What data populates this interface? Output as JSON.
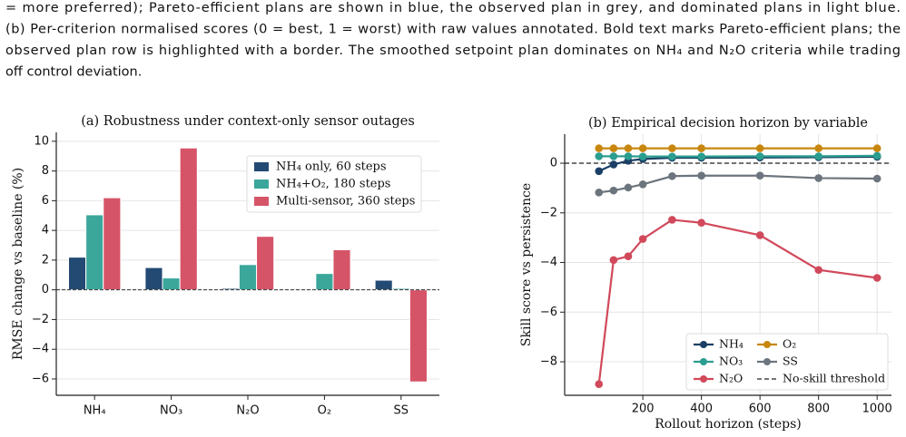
{
  "caption": [
    "= more preferred); Pareto-efficient plans are shown in blue, the observed plan in grey, and dominated plans in light blue.",
    "(b) Per-criterion normalised scores (0 = best, 1 = worst) with raw values annotated. Bold text marks Pareto-efficient plans; the",
    "observed plan row is highlighted with a border. The smoothed setpoint plan dominates on NH₄ and N₂O criteria while trading",
    "off control deviation."
  ],
  "chart_data": [
    {
      "type": "bar",
      "title": "(a) Robustness under context-only sensor outages",
      "ylabel": "RMSE change vs baseline (%)",
      "categories": [
        "NH₄",
        "NO₃",
        "N₂O",
        "O₂",
        "SS"
      ],
      "series": [
        {
          "name": "NH₄ only,  60 steps",
          "color": "#234a73",
          "values": [
            2.2,
            1.5,
            0.1,
            0,
            0.65
          ]
        },
        {
          "name": "NH₄+O₂,  180 steps",
          "color": "#3aa79a",
          "values": [
            5.05,
            0.8,
            1.7,
            1.1,
            0.1
          ]
        },
        {
          "name": "Multi-sensor,  360 steps",
          "color": "#d65468",
          "values": [
            6.2,
            9.55,
            3.6,
            2.7,
            -6.2
          ]
        }
      ],
      "ylim": [
        -7.1,
        10.6
      ],
      "yticks": [
        {
          "value": -6,
          "label": "−6"
        },
        {
          "value": -4,
          "label": "−4"
        },
        {
          "value": -2,
          "label": "−2"
        },
        0,
        2,
        4,
        6,
        8,
        10
      ],
      "grid": true,
      "legend": "upper right"
    },
    {
      "type": "line",
      "title": "(b) Empirical decision horizon by variable",
      "xlabel": "Rollout horizon (steps)",
      "ylabel": "Skill score vs persistence",
      "x": [
        50,
        100,
        150,
        200,
        300,
        400,
        600,
        800,
        1000
      ],
      "series": [
        {
          "name": "NH₄",
          "color": "#1b3f66",
          "values": [
            -0.32,
            -0.05,
            0.1,
            0.17,
            0.22,
            0.22,
            0.23,
            0.24,
            0.26
          ]
        },
        {
          "name": "NO₃",
          "color": "#2a9d8f",
          "values": [
            0.28,
            0.28,
            0.28,
            0.27,
            0.27,
            0.27,
            0.28,
            0.28,
            0.3
          ]
        },
        {
          "name": "N₂O",
          "color": "#d1495b",
          "values": [
            -8.9,
            -3.9,
            -3.75,
            -3.05,
            -2.28,
            -2.4,
            -2.9,
            -4.3,
            -4.62
          ]
        },
        {
          "name": "O₂",
          "color": "#c8860d",
          "values": [
            0.6,
            0.6,
            0.6,
            0.6,
            0.6,
            0.6,
            0.6,
            0.6,
            0.6
          ]
        },
        {
          "name": "SS",
          "color": "#6c757d",
          "values": [
            -1.18,
            -1.1,
            -0.98,
            -0.85,
            -0.52,
            -0.5,
            -0.5,
            -0.6,
            -0.62
          ]
        }
      ],
      "threshold": {
        "value": 0,
        "label": "No-skill threshold"
      },
      "xlim": [
        -67,
        1049
      ],
      "xticks": [
        200,
        400,
        600,
        800,
        1000
      ],
      "ylim": [
        -9.35,
        1.17
      ],
      "yticks": [
        {
          "value": -8,
          "label": "−8"
        },
        {
          "value": -6,
          "label": "−6"
        },
        {
          "value": -4,
          "label": "−4"
        },
        {
          "value": -2,
          "label": "−2"
        },
        0
      ],
      "grid": true,
      "legend": "lower right"
    }
  ]
}
